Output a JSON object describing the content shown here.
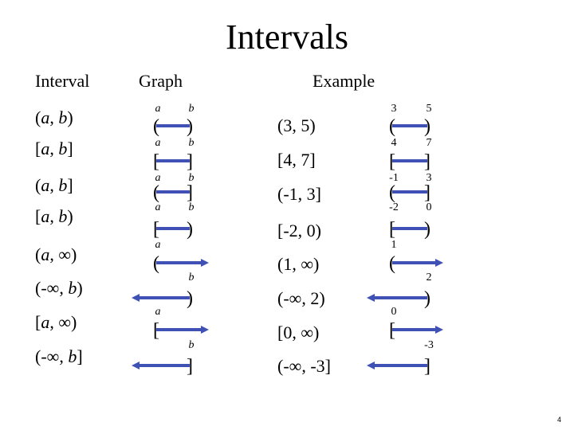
{
  "title": "Intervals",
  "headers": {
    "interval": "Interval",
    "graph": "Graph",
    "example": "Example"
  },
  "rows": [
    {
      "interval": [
        "(",
        "a",
        ", ",
        "b",
        ")"
      ],
      "graph": {
        "left": "a",
        "right": "b",
        "left_bracket": "(",
        "right_bracket": ")"
      },
      "example": "(3, 5)",
      "example_graph": {
        "left": "3",
        "right": "5",
        "left_bracket": "(",
        "right_bracket": ")"
      }
    },
    {
      "interval": [
        "[",
        "a",
        ", ",
        "b",
        "]"
      ],
      "graph": {
        "left": "a",
        "right": "b",
        "left_bracket": "[",
        "right_bracket": "]"
      },
      "example": "[4, 7]",
      "example_graph": {
        "left": "4",
        "right": "7",
        "left_bracket": "[",
        "right_bracket": "]"
      }
    },
    {
      "interval": [
        "(",
        "a",
        ", ",
        "b",
        "]"
      ],
      "graph": {
        "left": "a",
        "right": "b",
        "left_bracket": "(",
        "right_bracket": "]"
      },
      "example": "(-1, 3]",
      "example_graph": {
        "left": "-1",
        "right": "3",
        "left_bracket": "(",
        "right_bracket": "]"
      }
    },
    {
      "interval": [
        "[",
        "a",
        ", ",
        "b",
        ")"
      ],
      "graph": {
        "left": "a",
        "right": "b",
        "left_bracket": "[",
        "right_bracket": ")"
      },
      "example": "[-2, 0)",
      "example_graph": {
        "left": "-2",
        "right": "0",
        "left_bracket": "[",
        "right_bracket": ")"
      }
    },
    {
      "interval": [
        "(",
        "a",
        ", ∞)"
      ],
      "graph": {
        "left": "a",
        "left_bracket": "(",
        "arrow": "right"
      },
      "example": "(1, ∞)",
      "example_graph": {
        "left": "1",
        "left_bracket": "(",
        "arrow": "right"
      }
    },
    {
      "interval": [
        "(-∞, ",
        "b",
        ")"
      ],
      "graph": {
        "right": "b",
        "right_bracket": ")",
        "arrow": "left"
      },
      "example": "(-∞, 2)",
      "example_graph": {
        "right": "2",
        "right_bracket": ")",
        "arrow": "left"
      }
    },
    {
      "interval": [
        "[",
        "a",
        ", ∞)"
      ],
      "graph": {
        "left": "a",
        "left_bracket": "[",
        "arrow": "right"
      },
      "example": "[0, ∞)",
      "example_graph": {
        "left": "0",
        "left_bracket": "[",
        "arrow": "right"
      }
    },
    {
      "interval": [
        "(-∞, ",
        "b",
        "]"
      ],
      "graph": {
        "right": "b",
        "right_bracket": "]",
        "arrow": "left"
      },
      "example": "(-∞, -3]",
      "example_graph": {
        "right": "-3",
        "right_bracket": "]",
        "arrow": "left"
      }
    }
  ],
  "line_color": "#3f51b5",
  "page_number": "4"
}
